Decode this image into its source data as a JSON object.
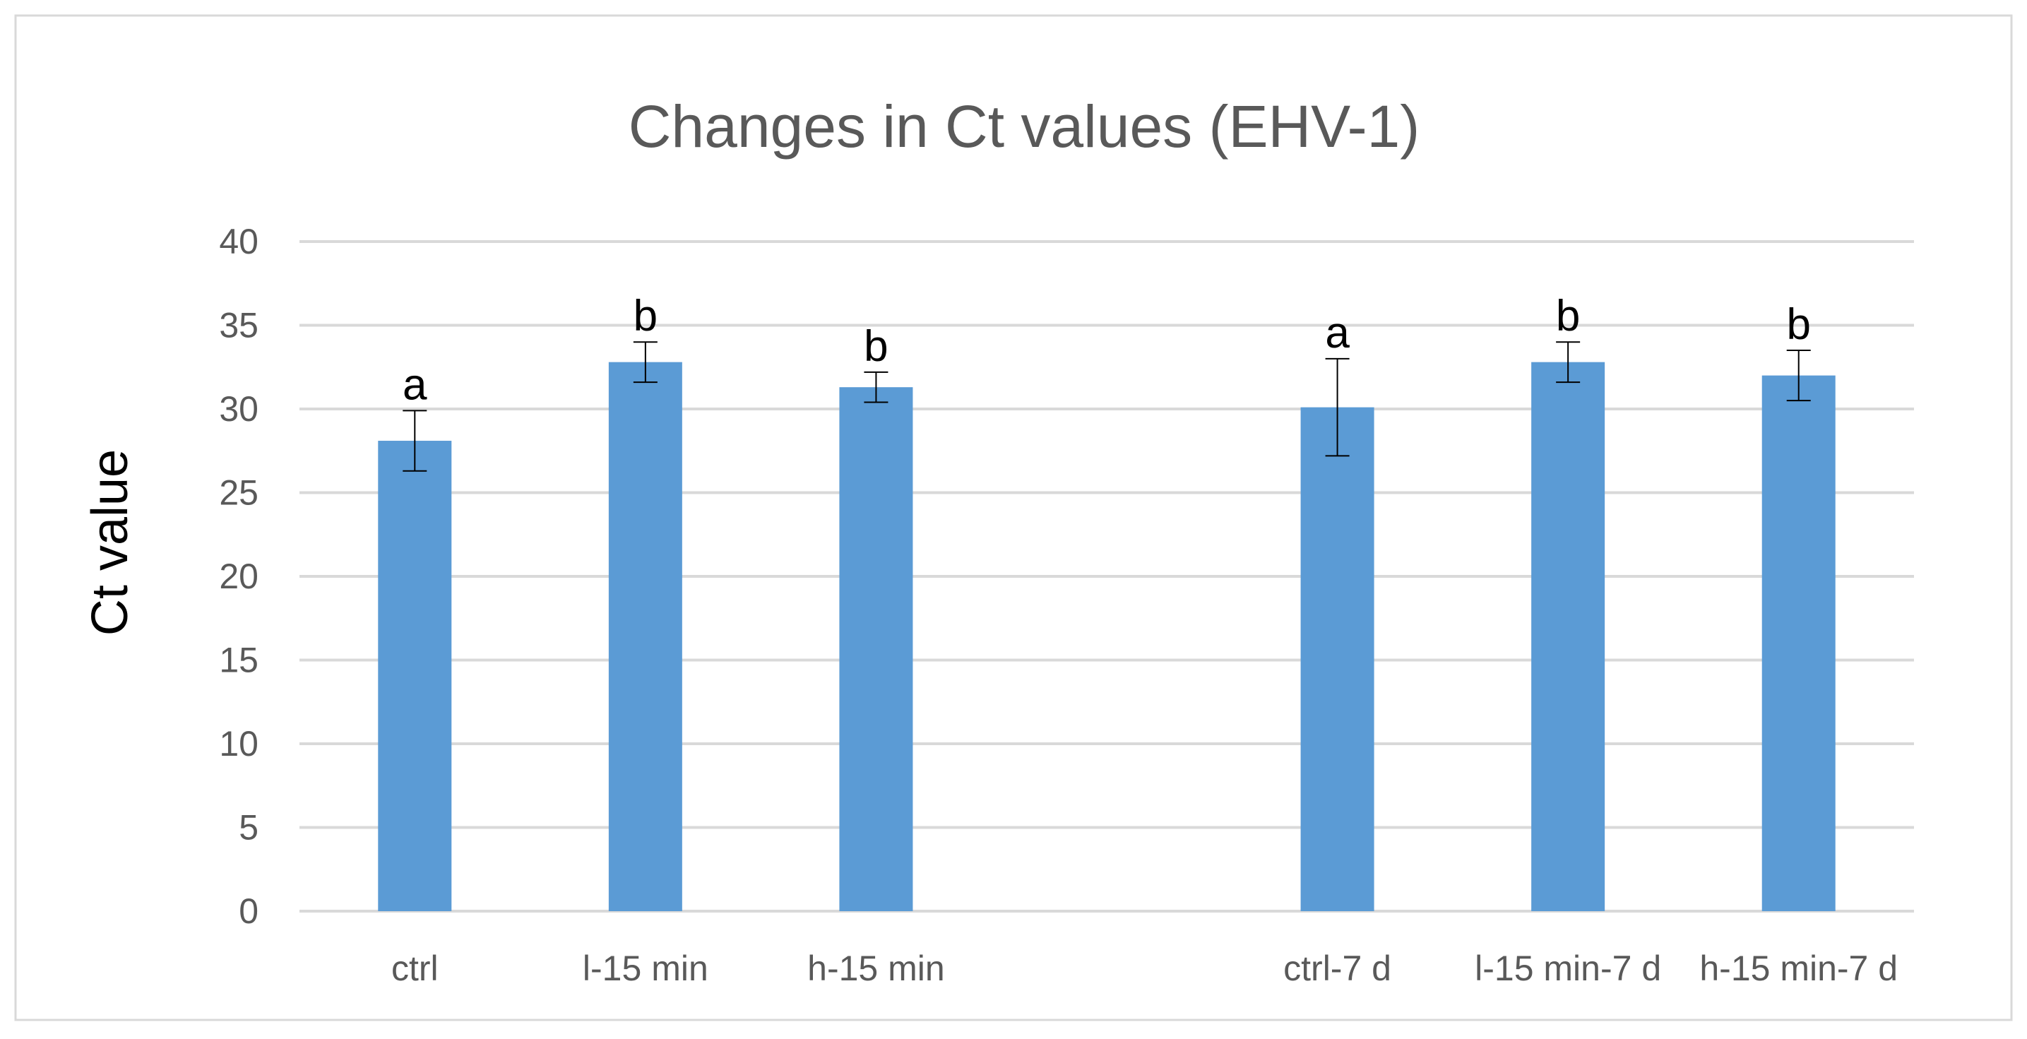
{
  "chart_data": {
    "type": "bar",
    "title": "Changes in Ct values (EHV-1)",
    "xlabel": "",
    "ylabel": "Ct value",
    "ylim": [
      0,
      40
    ],
    "yticks": [
      0,
      5,
      10,
      15,
      20,
      25,
      30,
      35,
      40
    ],
    "ytick_labels": [
      "0",
      "5",
      "10",
      "15",
      "20",
      "25",
      "30",
      "35",
      "40"
    ],
    "grid": true,
    "legend": "none",
    "categories": [
      "ctrl",
      "l-15 min",
      "h-15 min",
      "",
      "ctrl-7 d",
      "l-15 min-7 d",
      "h-15 min-7 d"
    ],
    "series": [
      {
        "values": [
          28.1,
          32.8,
          31.3,
          null,
          30.1,
          32.8,
          32.0
        ],
        "error": [
          1.8,
          1.2,
          0.9,
          null,
          2.9,
          1.2,
          1.5
        ],
        "labels": [
          "a",
          "b",
          "b",
          "",
          "a",
          "b",
          "b"
        ],
        "color": "#5b9bd5"
      }
    ],
    "colors": {
      "bar": "#5b9bd5",
      "grid": "#d9d9d9",
      "text": "#595959",
      "error_bar": "#000000",
      "border": "#d9d9d9"
    }
  }
}
